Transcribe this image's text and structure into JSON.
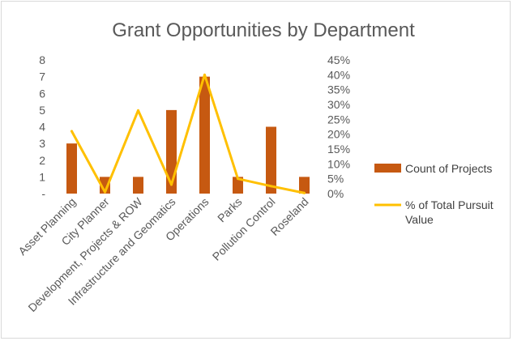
{
  "chart_data": {
    "type": "bar",
    "title": "Grant Opportunities by Department",
    "categories": [
      "Asset Planning",
      "City Planner",
      "Development, Projects & ROW",
      "Infrastructure and Geomatics",
      "Operations",
      "Parks",
      "Pollution Control",
      "Roseland"
    ],
    "series": [
      {
        "name": "Count of Projects",
        "type": "bar",
        "axis": "left",
        "color": "#C65911",
        "values": [
          3,
          1,
          1,
          5,
          7,
          1,
          4,
          1
        ]
      },
      {
        "name": "% of Total Pursuit Value",
        "type": "line",
        "axis": "right",
        "color": "#FFC000",
        "values": [
          0.21,
          0.005,
          0.28,
          0.03,
          0.4,
          0.05,
          0.025,
          0.002
        ]
      }
    ],
    "y_left": {
      "ylim": [
        0,
        8
      ],
      "tick_labels": [
        "-",
        "1",
        "2",
        "3",
        "4",
        "5",
        "6",
        "7",
        "8"
      ]
    },
    "y_right": {
      "ylim": [
        0,
        0.45
      ],
      "tick_labels": [
        "0%",
        "5%",
        "10%",
        "15%",
        "20%",
        "25%",
        "30%",
        "35%",
        "40%",
        "45%"
      ]
    },
    "legend": {
      "placement": "right",
      "entries": [
        {
          "label": "Count of Projects",
          "color": "#C65911",
          "marker": "square"
        },
        {
          "label_lines": [
            "% of Total Pursuit",
            "Value"
          ],
          "color": "#FFC000",
          "marker": "line"
        }
      ]
    }
  }
}
